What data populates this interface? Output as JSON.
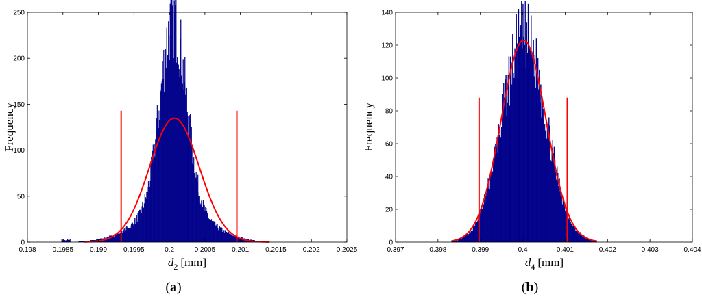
{
  "chart_data": [
    {
      "type": "histogram",
      "panel_label": "a",
      "ylabel": "Frequency",
      "xlabel_symbol": "d",
      "xlabel_subscript": "2",
      "xlabel_unit": "[mm]",
      "xlim": [
        0.198,
        0.2025
      ],
      "ylim": [
        0,
        250
      ],
      "x_ticks": [
        "0.198",
        "0.1985",
        "0.199",
        "0.1995",
        "0.2",
        "0.2005",
        "0.201",
        "0.2015",
        "0.202",
        "0.2025"
      ],
      "y_ticks": [
        "0",
        "50",
        "100",
        "150",
        "200",
        "250"
      ],
      "grid": false,
      "bar_color": "#00008B",
      "fit_color": "#FF0000",
      "histogram": {
        "x_start": 0.19848,
        "x_end": 0.2018,
        "step": 8.3e-06,
        "center": 0.20005,
        "peak": 210,
        "core_sigma": 0.00018,
        "tail_sigma": 0.00045,
        "tail_weight": 0.05,
        "left_floor": 0.1986
      },
      "normal_fit": {
        "mean": 0.20007,
        "sigma": 0.00035,
        "peak": 135,
        "range": [
          0.1988,
          0.2014
        ]
      },
      "limits": [
        {
          "x": 0.19932,
          "height": 143
        },
        {
          "x": 0.20095,
          "height": 143
        }
      ]
    },
    {
      "type": "histogram",
      "panel_label": "b",
      "ylabel": "Frequency",
      "xlabel_symbol": "d",
      "xlabel_subscript": "4",
      "xlabel_unit": "[mm]",
      "xlim": [
        0.397,
        0.404
      ],
      "ylim": [
        0,
        140
      ],
      "x_ticks": [
        "0.397",
        "0.398",
        "0.399",
        "0.4",
        "0.401",
        "0.402",
        "0.403",
        "0.404"
      ],
      "y_ticks": [
        "0",
        "20",
        "40",
        "60",
        "80",
        "100",
        "120",
        "140"
      ],
      "grid": false,
      "bar_color": "#00008B",
      "fit_color": "#FF0000",
      "histogram": {
        "x_start": 0.3983,
        "x_end": 0.4021,
        "step": 1.75e-05,
        "center": 0.40002,
        "peak": 125,
        "core_sigma": 0.00052,
        "tail_sigma": 0.0008,
        "tail_weight": 0.0,
        "left_floor": 0.3983
      },
      "normal_fit": {
        "mean": 0.40002,
        "sigma": 0.00053,
        "peak": 123,
        "range": [
          0.39835,
          0.40175
        ]
      },
      "limits": [
        {
          "x": 0.39897,
          "height": 88
        },
        {
          "x": 0.40105,
          "height": 88
        }
      ]
    }
  ]
}
